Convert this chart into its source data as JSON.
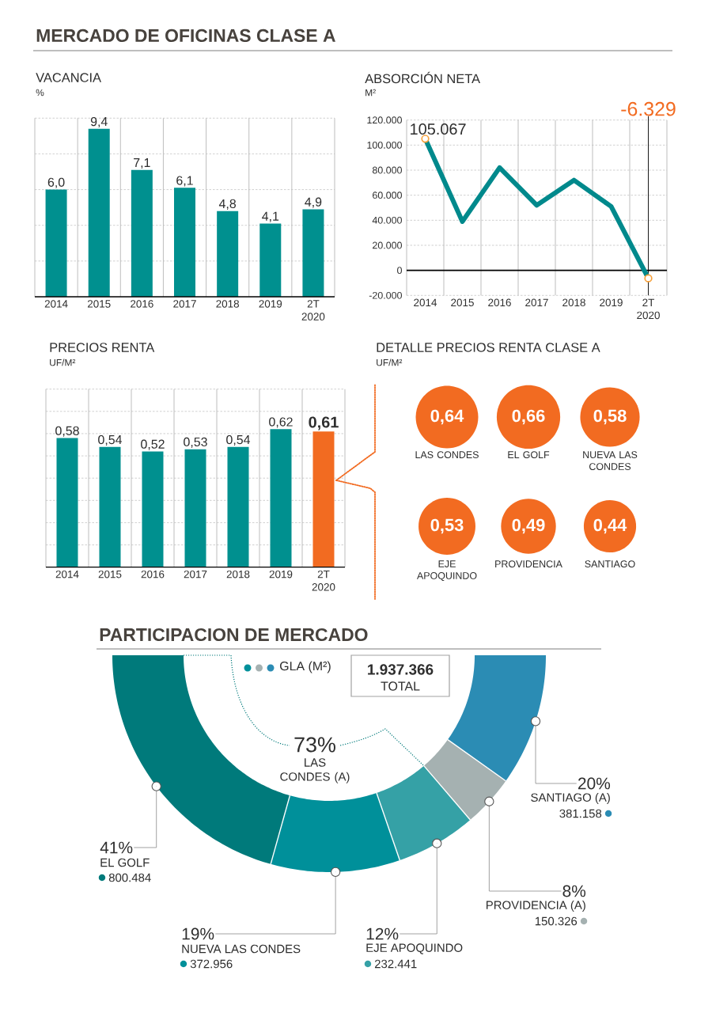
{
  "chart_data": [
    {
      "type": "other",
      "title": "MERCADO DE OFICINAS CLASE A"
    },
    {
      "type": "bar",
      "title": "VACANCIA",
      "ylabel": "%",
      "categories": [
        "2014",
        "2015",
        "2016",
        "2017",
        "2018",
        "2019",
        "2T 2020"
      ],
      "values": [
        6.0,
        9.4,
        7.1,
        6.1,
        4.8,
        4.1,
        4.9
      ],
      "color": "#00908f",
      "value_labels": [
        "6,0",
        "9,4",
        "7,1",
        "6,1",
        "4,8",
        "4,1",
        "4,9"
      ],
      "ylim": [
        0,
        10
      ],
      "yticks": [
        2,
        4,
        6,
        8,
        10
      ],
      "tick_labels": "x",
      "grid": true
    },
    {
      "type": "line",
      "title": "ABSORCIÓN NETA",
      "ylabel": "M²",
      "categories": [
        "2014",
        "2015",
        "2016",
        "2017",
        "2018",
        "2019",
        "2T 2020"
      ],
      "series": [
        {
          "color": "#00898c",
          "values": [
            105067,
            39000,
            82000,
            52000,
            72000,
            51000,
            -6329
          ],
          "value_labels": [
            "105.067",
            null,
            null,
            null,
            null,
            null,
            null
          ]
        },
        {
          "type": "scatter",
          "color": "#f7a13b",
          "marker": "circle",
          "values": [
            105067,
            null,
            null,
            null,
            null,
            null,
            -6329
          ]
        }
      ],
      "ylim": [
        -20000,
        120000
      ],
      "yticks": [
        {
          "value": -20000,
          "label": "-20.000"
        },
        0,
        {
          "value": 20000,
          "label": "20.000"
        },
        {
          "value": 40000,
          "label": "40.000"
        },
        {
          "value": 60000,
          "label": "60.000"
        },
        {
          "value": 80000,
          "label": "80.000"
        },
        {
          "value": 100000,
          "label": "100.000"
        },
        {
          "value": 120000,
          "label": "120.000"
        }
      ],
      "grid": true,
      "ref_lines": [
        {
          "axis": "y",
          "value": 0
        },
        {
          "axis": "x",
          "value": "2T 2020",
          "label": "-6.329"
        }
      ]
    },
    {
      "type": "bar",
      "title": "PRECIOS RENTA",
      "ylabel": "UF/M²",
      "categories": [
        "2014",
        "2015",
        "2016",
        "2017",
        "2018",
        "2019",
        "2T 2020"
      ],
      "values": [
        0.58,
        0.54,
        0.52,
        0.53,
        0.54,
        0.62,
        0.61
      ],
      "colors": [
        "#00908f",
        "#00908f",
        "#00908f",
        "#00908f",
        "#00908f",
        "#00908f",
        "#f26b21"
      ],
      "value_labels": [
        "0,58",
        "0,54",
        "0,52",
        "0,53",
        "0,54",
        "0,62",
        "0,61"
      ],
      "ylim": [
        0,
        0.8
      ],
      "yticks": [
        0.1,
        0.2,
        0.3,
        0.4,
        0.5,
        0.6,
        0.7,
        0.8
      ],
      "tick_labels": "x",
      "grid": true
    },
    {
      "type": "other",
      "title": "DETALLE PRECIOS RENTA CLASE A",
      "subtitle": "UF/M²",
      "categories": [
        "LAS CONDES",
        "EL GOLF",
        "NUEVA LAS CONDES",
        "EJE APOQUINDO",
        "PROVIDENCIA",
        "SANTIAGO"
      ],
      "values": [
        0.64,
        0.66,
        0.58,
        0.53,
        0.49,
        0.44
      ],
      "value_labels": [
        "0,64",
        "0,66",
        "0,58",
        "0,53",
        "0,49",
        "0,44"
      ],
      "color": "#f26b21"
    },
    {
      "type": "donut",
      "title": "PARTICIPACION DE MERCADO",
      "categories": [
        "EL GOLF",
        "NUEVA LAS CONDES",
        "EJE APOQUINDO",
        "PROVIDENCIA (A)",
        "SANTIAGO (A)"
      ],
      "values": [
        800484,
        372956,
        232441,
        150326,
        381158
      ],
      "colors": [
        "#007a7b",
        "#00909a",
        "#35a1a6",
        "#a5b1b1",
        "#2b8cb4"
      ],
      "value_labels": [
        "800.484",
        "372.956",
        "232.441",
        "150.326",
        "381.158"
      ],
      "annotations": [
        {
          "text": "41%",
          "x": "EL GOLF"
        },
        {
          "text": "19%",
          "x": "NUEVA LAS CONDES"
        },
        {
          "text": "12%",
          "x": "EJE APOQUINDO"
        },
        {
          "text": "8%",
          "x": "PROVIDENCIA (A)"
        },
        {
          "text": "20%",
          "x": "SANTIAGO (A)"
        },
        "GLA (M²)",
        "1.937.366",
        "TOTAL",
        "73%",
        "LAS CONDES (A)"
      ]
    }
  ]
}
